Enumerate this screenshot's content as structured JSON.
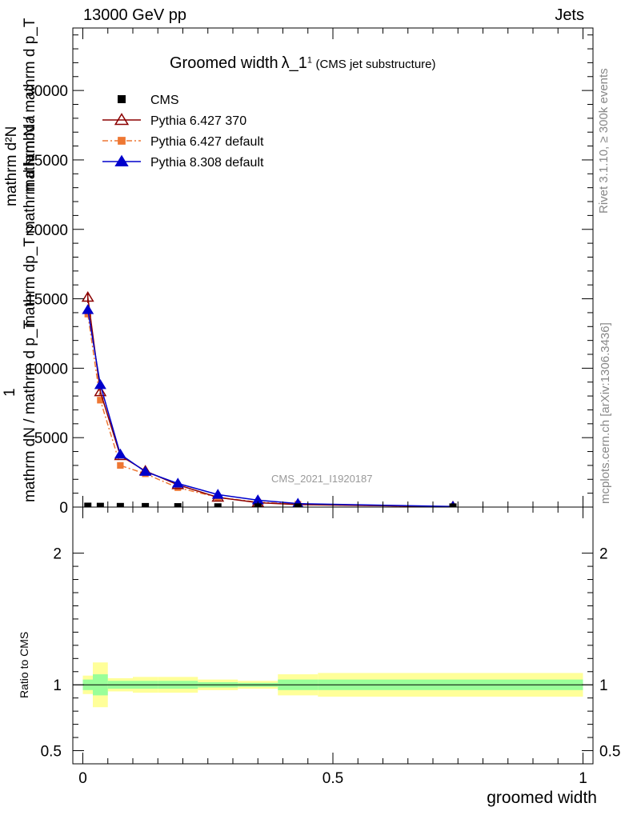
{
  "header": {
    "left": "13000 GeV pp",
    "right": "Jets"
  },
  "side_text": {
    "rivet": "Rivet 3.1.10, ≥ 300k events",
    "mcplots": "mcplots.cern.ch [arXiv:1306.3436]"
  },
  "title": {
    "main": "Groomed width",
    "lambda": "λ_1",
    "sup": "1",
    "sub": "(CMS jet substructure)"
  },
  "watermark": "CMS_2021_I1920187",
  "ylabel": {
    "one": "1",
    "numerator": "mathrm d²N",
    "denominator": "mathrm d p_T mathrm d lambda"
  },
  "ylabel_lines": [
    "mathrm dN / mathrm d p_T",
    "mathrm dp_T mathrm d lambda",
    "mathrm d²N",
    "mathrm N / mathrm d p_T"
  ],
  "xlabel": "groomed width",
  "ratio_ylabel": "Ratio to CMS",
  "chart_data": [
    {
      "type": "line",
      "panel": "main",
      "xlim": [
        -0.02,
        1.02
      ],
      "ylim": [
        0,
        34500
      ],
      "x_ticks": [
        "0",
        "0.5",
        "1"
      ],
      "y_ticks": [
        "0",
        "5000",
        "10000",
        "15000",
        "20000",
        "25000",
        "30000"
      ],
      "series": [
        {
          "name": "CMS",
          "color": "#000000",
          "marker": "square",
          "x": [
            0.01,
            0.035,
            0.075,
            0.125,
            0.19,
            0.27,
            0.35,
            0.43,
            0.74
          ],
          "y": [
            60,
            50,
            40,
            35,
            25,
            15,
            10,
            8,
            5
          ]
        },
        {
          "name": "Pythia 6.427 370",
          "color": "#8b0000",
          "marker": "triangle-open",
          "dash": "",
          "x": [
            0.01,
            0.035,
            0.075,
            0.125,
            0.19,
            0.27,
            0.35,
            0.43,
            0.74
          ],
          "y": [
            15100,
            8300,
            3700,
            2600,
            1600,
            700,
            320,
            180,
            25
          ],
          "yerr": [
            400,
            200,
            100,
            80,
            60,
            40,
            30,
            20,
            10
          ]
        },
        {
          "name": "Pythia 6.427 default",
          "color": "#ee7733",
          "marker": "square-small",
          "dash": "7,3,2,3",
          "x": [
            0.01,
            0.035,
            0.075,
            0.125,
            0.19,
            0.27,
            0.35,
            0.43,
            0.74
          ],
          "y": [
            13900,
            7700,
            3000,
            2400,
            1400,
            700,
            350,
            200,
            25
          ]
        },
        {
          "name": "Pythia 8.308 default",
          "color": "#0000cc",
          "marker": "triangle",
          "dash": "",
          "x": [
            0.01,
            0.035,
            0.075,
            0.125,
            0.19,
            0.27,
            0.35,
            0.43,
            0.74
          ],
          "y": [
            14200,
            8800,
            3800,
            2550,
            1700,
            900,
            500,
            250,
            40
          ]
        }
      ]
    },
    {
      "type": "area",
      "panel": "ratio",
      "xlim": [
        -0.02,
        1.02
      ],
      "ylim": [
        0.4,
        2.35
      ],
      "y_ticks": [
        "0.5",
        "1",
        "2"
      ],
      "bands": {
        "yellow": [
          {
            "x": [
              0.0,
              0.02
            ],
            "lo": 0.93,
            "hi": 1.07
          },
          {
            "x": [
              0.02,
              0.05
            ],
            "lo": 0.83,
            "hi": 1.17
          },
          {
            "x": [
              0.05,
              0.1
            ],
            "lo": 0.95,
            "hi": 1.05
          },
          {
            "x": [
              0.1,
              0.15
            ],
            "lo": 0.94,
            "hi": 1.06
          },
          {
            "x": [
              0.15,
              0.23
            ],
            "lo": 0.94,
            "hi": 1.06
          },
          {
            "x": [
              0.23,
              0.31
            ],
            "lo": 0.96,
            "hi": 1.04
          },
          {
            "x": [
              0.31,
              0.39
            ],
            "lo": 0.97,
            "hi": 1.03
          },
          {
            "x": [
              0.39,
              0.47
            ],
            "lo": 0.92,
            "hi": 1.08
          },
          {
            "x": [
              0.47,
              1.0
            ],
            "lo": 0.91,
            "hi": 1.09
          }
        ],
        "green": [
          {
            "x": [
              0.0,
              0.02
            ],
            "lo": 0.96,
            "hi": 1.04
          },
          {
            "x": [
              0.02,
              0.05
            ],
            "lo": 0.92,
            "hi": 1.08
          },
          {
            "x": [
              0.05,
              0.1
            ],
            "lo": 0.97,
            "hi": 1.03
          },
          {
            "x": [
              0.1,
              0.15
            ],
            "lo": 0.97,
            "hi": 1.03
          },
          {
            "x": [
              0.15,
              0.23
            ],
            "lo": 0.97,
            "hi": 1.03
          },
          {
            "x": [
              0.23,
              0.31
            ],
            "lo": 0.98,
            "hi": 1.02
          },
          {
            "x": [
              0.31,
              0.39
            ],
            "lo": 0.985,
            "hi": 1.015
          },
          {
            "x": [
              0.39,
              0.47
            ],
            "lo": 0.96,
            "hi": 1.04
          },
          {
            "x": [
              0.47,
              1.0
            ],
            "lo": 0.96,
            "hi": 1.04
          }
        ]
      },
      "reference_line": 1
    }
  ]
}
